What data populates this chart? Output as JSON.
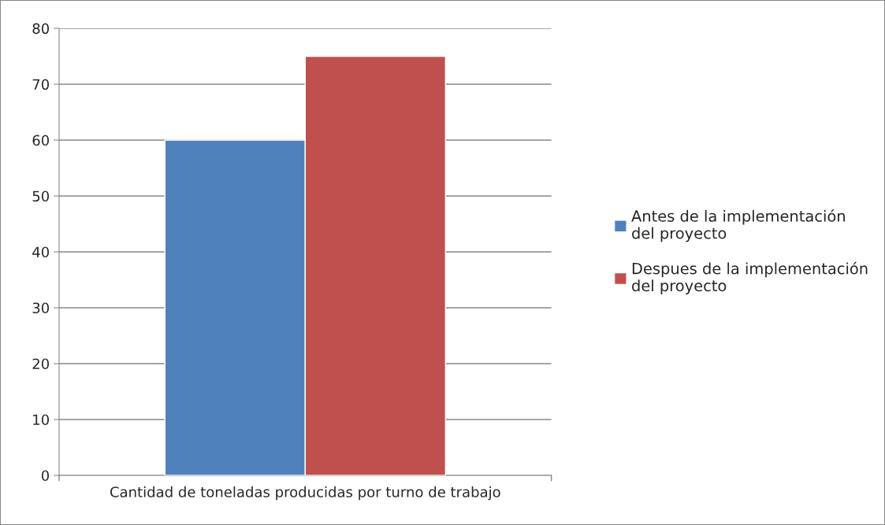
{
  "chart_data": {
    "type": "bar",
    "categories": [
      "Cantidad de toneladas producidas por turno de trabajo"
    ],
    "series": [
      {
        "name": "Antes de la implementación\ndel proyecto",
        "color": "#4f81bd",
        "values": [
          60
        ]
      },
      {
        "name": "Despues de la implementación\ndel proyecto",
        "color": "#c0504d",
        "values": [
          75
        ]
      }
    ],
    "ylim": [
      0,
      80
    ],
    "yticks": [
      0,
      10,
      20,
      30,
      40,
      50,
      60,
      70,
      80
    ],
    "grid": "y",
    "legend": "right"
  }
}
